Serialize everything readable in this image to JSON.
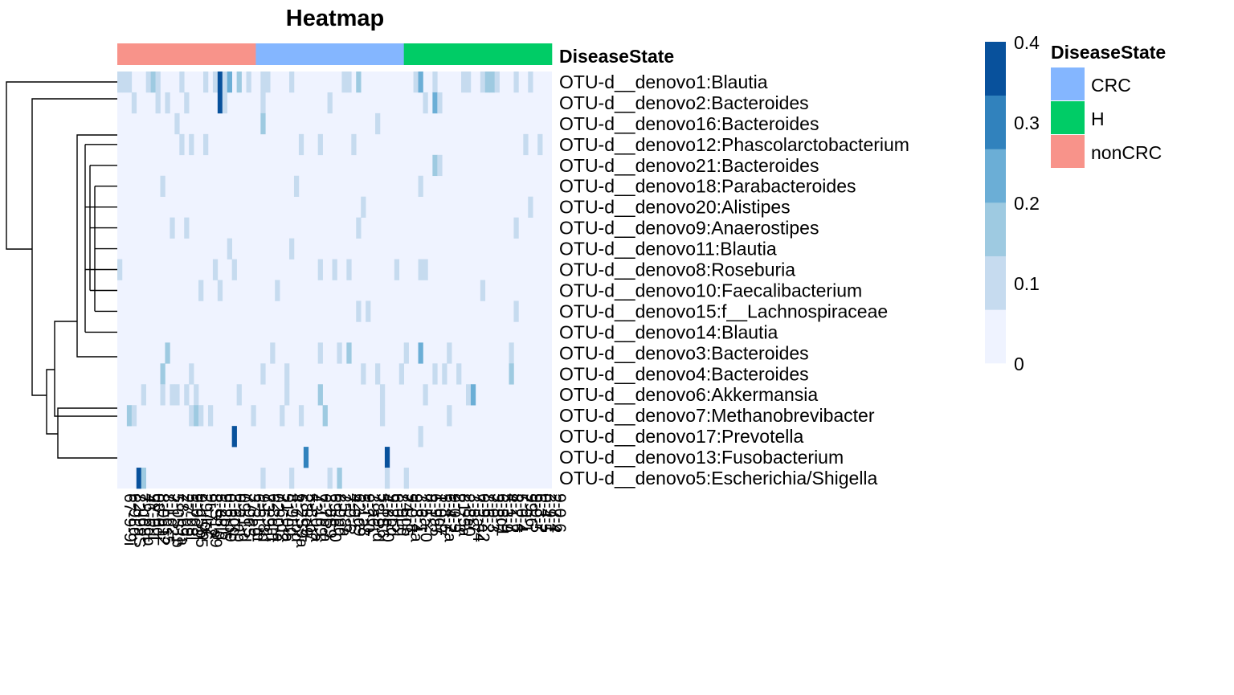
{
  "chart_data": {
    "type": "heatmap",
    "title": "Heatmap",
    "annotation_title": "DiseaseState",
    "legend_title": "DiseaseState",
    "groups": [
      {
        "name": "nonCRC",
        "color": "#F8938A",
        "count": 29
      },
      {
        "name": "CRC",
        "color": "#84B6FF",
        "count": 31
      },
      {
        "name": "H",
        "color": "#00CC66",
        "count": 31
      }
    ],
    "legend_groups": [
      {
        "name": "CRC",
        "color": "#84B6FF"
      },
      {
        "name": "H",
        "color": "#00CC66"
      },
      {
        "name": "nonCRC",
        "color": "#F8938A"
      }
    ],
    "rows": [
      "OTU-d__denovo1:Blautia",
      "OTU-d__denovo2:Bacteroides",
      "OTU-d__denovo16:Bacteroides",
      "OTU-d__denovo12:Phascolarctobacterium",
      "OTU-d__denovo21:Bacteroides",
      "OTU-d__denovo18:Parabacteroides",
      "OTU-d__denovo20:Alistipes",
      "OTU-d__denovo9:Anaerostipes",
      "OTU-d__denovo11:Blautia",
      "OTU-d__denovo8:Roseburia",
      "OTU-d__denovo10:Faecalibacterium",
      "OTU-d__denovo15:f__Lachnospiraceae",
      "OTU-d__denovo14:Blautia",
      "OTU-d__denovo3:Bacteroides",
      "OTU-d__denovo4:Bacteroides",
      "OTU-d__denovo6:Akkermansia",
      "OTU-d__denovo7:Methanobrevibacter",
      "OTU-d__denovo17:Prevotella",
      "OTU-d__denovo13:Fusobacterium",
      "OTU-d__denovo5:Escherichia/Shigella"
    ],
    "n_columns": 91,
    "value_range": [
      0,
      0.4
    ],
    "color_scale": {
      "bins": [
        0,
        0.067,
        0.133,
        0.2,
        0.267,
        0.333,
        0.4
      ],
      "colors": [
        "#EFF3FF",
        "#C6DBEF",
        "#9ECAE1",
        "#6BAED6",
        "#3182BD",
        "#08519C"
      ],
      "tick_values": [
        0,
        0.1,
        0.2,
        0.3,
        0.4
      ],
      "tick_labels": [
        "0",
        "0.1",
        "0.2",
        "0.3",
        "0.4"
      ]
    },
    "nonzero_cells": [
      [
        0,
        0,
        0.1
      ],
      [
        0,
        1,
        0.1
      ],
      [
        0,
        2,
        0.1
      ],
      [
        0,
        6,
        0.1
      ],
      [
        0,
        7,
        0.15
      ],
      [
        0,
        8,
        0.1
      ],
      [
        0,
        13,
        0.1
      ],
      [
        0,
        18,
        0.1
      ],
      [
        0,
        20,
        0.1
      ],
      [
        0,
        21,
        0.35
      ],
      [
        0,
        22,
        0.1
      ],
      [
        0,
        23,
        0.25
      ],
      [
        0,
        25,
        0.2
      ],
      [
        0,
        27,
        0.1
      ],
      [
        0,
        30,
        0.1
      ],
      [
        0,
        31,
        0.1
      ],
      [
        0,
        36,
        0.1
      ],
      [
        0,
        47,
        0.1
      ],
      [
        0,
        48,
        0.1
      ],
      [
        0,
        50,
        0.2
      ],
      [
        0,
        62,
        0.1
      ],
      [
        0,
        63,
        0.25
      ],
      [
        0,
        66,
        0.1
      ],
      [
        0,
        72,
        0.1
      ],
      [
        0,
        73,
        0.1
      ],
      [
        0,
        76,
        0.1
      ],
      [
        0,
        77,
        0.15
      ],
      [
        0,
        78,
        0.15
      ],
      [
        0,
        79,
        0.1
      ],
      [
        0,
        83,
        0.1
      ],
      [
        0,
        86,
        0.1
      ],
      [
        1,
        3,
        0.1
      ],
      [
        1,
        8,
        0.1
      ],
      [
        1,
        10,
        0.1
      ],
      [
        1,
        14,
        0.1
      ],
      [
        1,
        21,
        0.35
      ],
      [
        1,
        22,
        0.1
      ],
      [
        1,
        30,
        0.1
      ],
      [
        1,
        44,
        0.1
      ],
      [
        1,
        64,
        0.1
      ],
      [
        1,
        66,
        0.25
      ],
      [
        1,
        67,
        0.1
      ],
      [
        2,
        12,
        0.1
      ],
      [
        2,
        30,
        0.15
      ],
      [
        2,
        54,
        0.1
      ],
      [
        3,
        13,
        0.1
      ],
      [
        3,
        15,
        0.1
      ],
      [
        3,
        18,
        0.1
      ],
      [
        3,
        38,
        0.1
      ],
      [
        3,
        42,
        0.1
      ],
      [
        3,
        49,
        0.1
      ],
      [
        3,
        85,
        0.1
      ],
      [
        3,
        88,
        0.1
      ],
      [
        4,
        66,
        0.2
      ],
      [
        4,
        67,
        0.1
      ],
      [
        5,
        9,
        0.1
      ],
      [
        5,
        37,
        0.1
      ],
      [
        5,
        63,
        0.1
      ],
      [
        6,
        51,
        0.1
      ],
      [
        6,
        86,
        0.1
      ],
      [
        7,
        11,
        0.1
      ],
      [
        7,
        14,
        0.1
      ],
      [
        7,
        50,
        0.1
      ],
      [
        7,
        83,
        0.1
      ],
      [
        8,
        23,
        0.1
      ],
      [
        8,
        36,
        0.1
      ],
      [
        9,
        0,
        0.1
      ],
      [
        9,
        20,
        0.1
      ],
      [
        9,
        24,
        0.1
      ],
      [
        9,
        42,
        0.1
      ],
      [
        9,
        45,
        0.1
      ],
      [
        9,
        48,
        0.1
      ],
      [
        9,
        58,
        0.1
      ],
      [
        9,
        63,
        0.1
      ],
      [
        9,
        64,
        0.1
      ],
      [
        10,
        17,
        0.1
      ],
      [
        10,
        21,
        0.1
      ],
      [
        10,
        33,
        0.1
      ],
      [
        10,
        76,
        0.1
      ],
      [
        11,
        50,
        0.1
      ],
      [
        11,
        52,
        0.1
      ],
      [
        11,
        83,
        0.1
      ],
      [
        13,
        10,
        0.15
      ],
      [
        13,
        32,
        0.1
      ],
      [
        13,
        42,
        0.1
      ],
      [
        13,
        46,
        0.1
      ],
      [
        13,
        48,
        0.15
      ],
      [
        13,
        60,
        0.1
      ],
      [
        13,
        63,
        0.25
      ],
      [
        13,
        69,
        0.1
      ],
      [
        13,
        82,
        0.1
      ],
      [
        14,
        9,
        0.15
      ],
      [
        14,
        15,
        0.1
      ],
      [
        14,
        30,
        0.1
      ],
      [
        14,
        35,
        0.1
      ],
      [
        14,
        51,
        0.1
      ],
      [
        14,
        54,
        0.1
      ],
      [
        14,
        59,
        0.1
      ],
      [
        14,
        66,
        0.1
      ],
      [
        14,
        68,
        0.1
      ],
      [
        14,
        71,
        0.1
      ],
      [
        14,
        82,
        0.2
      ],
      [
        15,
        5,
        0.1
      ],
      [
        15,
        9,
        0.1
      ],
      [
        15,
        11,
        0.1
      ],
      [
        15,
        12,
        0.1
      ],
      [
        15,
        14,
        0.1
      ],
      [
        15,
        16,
        0.1
      ],
      [
        15,
        25,
        0.1
      ],
      [
        15,
        35,
        0.1
      ],
      [
        15,
        42,
        0.2
      ],
      [
        15,
        55,
        0.1
      ],
      [
        15,
        64,
        0.1
      ],
      [
        15,
        73,
        0.1
      ],
      [
        15,
        74,
        0.25
      ],
      [
        16,
        2,
        0.15
      ],
      [
        16,
        3,
        0.1
      ],
      [
        16,
        15,
        0.1
      ],
      [
        16,
        16,
        0.2
      ],
      [
        16,
        17,
        0.1
      ],
      [
        16,
        19,
        0.1
      ],
      [
        16,
        28,
        0.1
      ],
      [
        16,
        34,
        0.1
      ],
      [
        16,
        38,
        0.1
      ],
      [
        16,
        43,
        0.15
      ],
      [
        16,
        55,
        0.1
      ],
      [
        16,
        69,
        0.1
      ],
      [
        17,
        24,
        0.4
      ],
      [
        17,
        63,
        0.1
      ],
      [
        18,
        39,
        0.3
      ],
      [
        18,
        56,
        0.4
      ],
      [
        19,
        4,
        0.35
      ],
      [
        19,
        5,
        0.2
      ],
      [
        19,
        30,
        0.1
      ],
      [
        19,
        36,
        0.1
      ],
      [
        19,
        44,
        0.1
      ],
      [
        19,
        46,
        0.15
      ],
      [
        19,
        56,
        0.1
      ],
      [
        19,
        60,
        0.1
      ]
    ],
    "column_labels": [
      "67-9-9i",
      "6-9Ld",
      "82-9aS",
      "7-qd8-",
      "46-6db",
      "9Y-0-1",
      "08-0di",
      "8-0b12",
      "8-Lgs5",
      "7-1d2-",
      "5-0S1b",
      "78-b9a",
      "27-d9-",
      "5-7d8i",
      "9-0d3l",
      "9-dSb5",
      "29-lo6",
      "9i-7-2",
      "8-S1a9",
      "5-88ig",
      "9-2bi6",
      "0-6-b9",
      "3-6dq",
      "0-9-ab",
      "09-1-d",
      "7-9dS",
      "37-a9-",
      "6-5Lm",
      "9-6-8d",
      "73-9a-",
      "6-8dm",
      "02-0-a",
      "7-6-d2",
      "51-0-a",
      "8-9Lg",
      "4-7-pd",
      "6-2S9a",
      "28-d9-",
      "5-8-b7",
      "43-0-a",
      "7-1d9",
      "6-7b-a",
      "3-8S9",
      "69-a-0",
      "8-9pd",
      "25-8a",
      "7-0-6",
      "4-9-S",
      "62-d9",
      "5-1a8",
      "9-7-0",
      "3-a6L",
      "78-9-d",
      "5-1S6",
      "4-8a-0",
      "9-2pd",
      "6-0-5",
      "8-9Ld",
      "74-d6",
      "9-0-8",
      "9-8-4a",
      "3-6-1",
      "7-5a-0",
      "8-1-2",
      "6-9a5",
      "1-0d7",
      "5-8-6",
      "6-4-7a",
      "9-0-5",
      "2-7-3",
      "81-5a",
      "2-8a0",
      "3-5-7",
      "7-3a-4",
      "6-9-a2",
      "8-6-2",
      "7-0-3",
      "3-8-7",
      "6-5d1",
      "5-3-9",
      "4-1-7",
      "8-2-6",
      "5-0-4",
      "7-9-1",
      "99-6",
      "9-9-5",
      "6-3-7",
      "0-4-5",
      "3-9-1",
      "2-7-4",
      "9-0-6"
    ]
  }
}
